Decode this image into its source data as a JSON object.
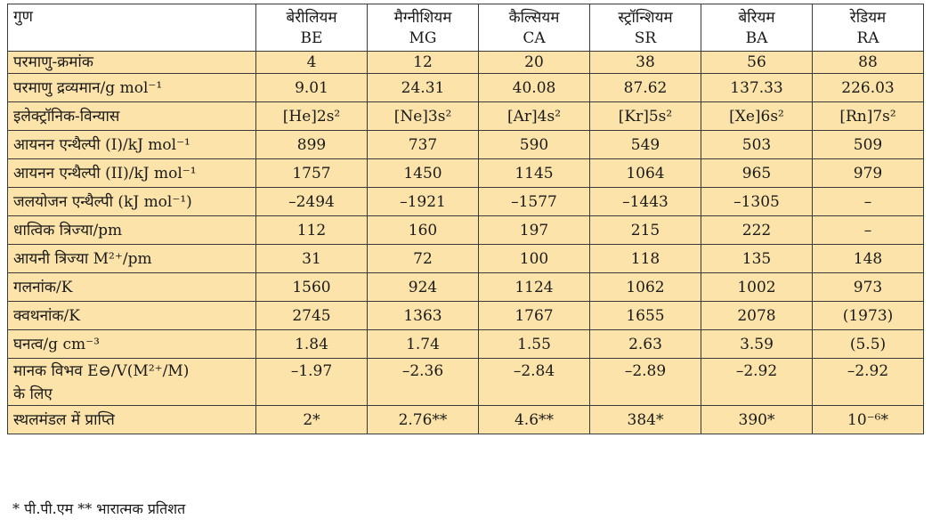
{
  "table": {
    "header_label": "गुण",
    "elements": [
      {
        "name": "बेरीलियम",
        "symbol": "BE"
      },
      {
        "name": "मैग्नीशियम",
        "symbol": "MG"
      },
      {
        "name": "कैल्सियम",
        "symbol": "CA"
      },
      {
        "name": "स्ट्रॉन्शियम",
        "symbol": "SR"
      },
      {
        "name": "बेरियम",
        "symbol": "BA"
      },
      {
        "name": "रेडियम",
        "symbol": "RA"
      }
    ],
    "rows": [
      {
        "label": "परमाणु-क्रमांक",
        "values": [
          "4",
          "12",
          "20",
          "38",
          "56",
          "88"
        ]
      },
      {
        "label": "परमाणु द्रव्यमान/g mol⁻¹",
        "values": [
          "9.01",
          "24.31",
          "40.08",
          "87.62",
          "137.33",
          "226.03"
        ]
      },
      {
        "label": "इलेक्ट्रॉनिक-विन्यास",
        "values": [
          "[He]2s²",
          "[Ne]3s²",
          "[Ar]4s²",
          "[Kr]5s²",
          "[Xe]6s²",
          "[Rn]7s²"
        ]
      },
      {
        "label": "आयनन एन्थैल्पी (I)/kJ mol⁻¹",
        "values": [
          "899",
          "737",
          "590",
          "549",
          "503",
          "509"
        ]
      },
      {
        "label": "आयनन एन्थैल्पी (II)/kJ mol⁻¹",
        "values": [
          "1757",
          "1450",
          "1145",
          "1064",
          "965",
          "979"
        ]
      },
      {
        "label": "जलयोजन एन्थैल्पी (kJ mol⁻¹)",
        "values": [
          "–2494",
          "–1921",
          "–1577",
          "–1443",
          "–1305",
          "–"
        ]
      },
      {
        "label": "धात्विक त्रिज्या/pm",
        "values": [
          "112",
          "160",
          "197",
          "215",
          "222",
          "–"
        ]
      },
      {
        "label": "आयनी त्रिज्या M²⁺/pm",
        "values": [
          "31",
          "72",
          "100",
          "118",
          "135",
          "148"
        ]
      },
      {
        "label": "गलनांक/K",
        "values": [
          "1560",
          "924",
          "1124",
          "1062",
          "1002",
          "973"
        ]
      },
      {
        "label": "क्वथनांक/K",
        "values": [
          "2745",
          "1363",
          "1767",
          "1655",
          "2078",
          "(1973)"
        ]
      },
      {
        "label": "घनत्व/g cm⁻³",
        "values": [
          "1.84",
          "1.74",
          "1.55",
          "2.63",
          "3.59",
          "(5.5)"
        ]
      },
      {
        "label": "मानक विभव E⊖/V(M²⁺/M)",
        "label2": "के लिए",
        "values": [
          "–1.97",
          "–2.36",
          "–2.84",
          "–2.89",
          "–2.92",
          "–2.92"
        ]
      },
      {
        "label": "स्थलमंडल में प्राप्ति",
        "values": [
          "2*",
          "2.76**",
          "4.6**",
          "384*",
          "390*",
          "10⁻⁶*"
        ]
      }
    ]
  },
  "footnote": "* पी.पी.एम ** भारात्मक प्रतिशत",
  "colors": {
    "row_fill": "#fce3a9",
    "header_fill": "#ffffff",
    "border": "#3a3a3a"
  }
}
